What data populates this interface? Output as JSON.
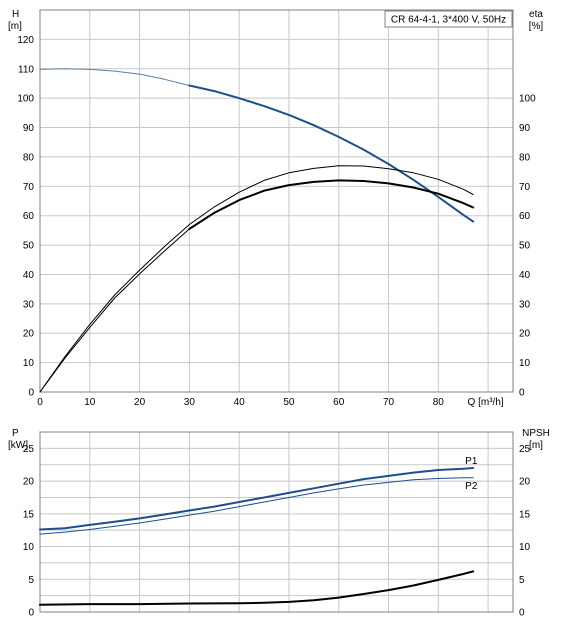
{
  "chart_data": [
    {
      "type": "line",
      "title": "CR 64-4-1, 3*400 V, 50Hz",
      "left_axis": {
        "label_line1": "H",
        "label_line2": "[m]",
        "ylim": [
          0,
          130
        ],
        "ticks": [
          0,
          10,
          20,
          30,
          40,
          50,
          60,
          70,
          80,
          90,
          100,
          110,
          120
        ]
      },
      "right_axis": {
        "label_line1": "eta",
        "label_line2": "[%]",
        "ylim": [
          0,
          130
        ],
        "ticks": [
          0,
          10,
          20,
          30,
          40,
          50,
          60,
          70,
          80,
          90,
          100
        ]
      },
      "x_axis": {
        "label": "Q [m³/h]",
        "xlim": [
          0,
          95
        ],
        "ticks": [
          0,
          10,
          20,
          30,
          40,
          50,
          60,
          70,
          80
        ]
      },
      "grid": true,
      "series": [
        {
          "color": "#5b7fa6",
          "width": 1,
          "points": [
            [
              0,
              109.8
            ],
            [
              5,
              110
            ],
            [
              10,
              109.8
            ],
            [
              15,
              109.2
            ],
            [
              20,
              108.2
            ],
            [
              25,
              106.4
            ],
            [
              30,
              104.3
            ]
          ]
        },
        {
          "color": "#1f4e8c",
          "width": 2,
          "points": [
            [
              30,
              104.3
            ],
            [
              35,
              102.4
            ],
            [
              40,
              100
            ],
            [
              45,
              97.3
            ],
            [
              50,
              94.3
            ],
            [
              55,
              90.8
            ],
            [
              60,
              86.8
            ],
            [
              65,
              82.5
            ],
            [
              70,
              77.6
            ],
            [
              75,
              72.2
            ],
            [
              80,
              66.4
            ],
            [
              85,
              60.3
            ],
            [
              87,
              58
            ]
          ]
        },
        {
          "color": "#000000",
          "width": 1,
          "points": [
            [
              0,
              0
            ],
            [
              5,
              12
            ],
            [
              10,
              23
            ],
            [
              15,
              33
            ],
            [
              20,
              41.5
            ],
            [
              25,
              49.5
            ],
            [
              30,
              57
            ],
            [
              35,
              63
            ],
            [
              40,
              68
            ],
            [
              45,
              72
            ],
            [
              50,
              74.6
            ],
            [
              55,
              76.1
            ],
            [
              60,
              77
            ],
            [
              65,
              76.9
            ],
            [
              70,
              76
            ],
            [
              75,
              74.6
            ],
            [
              80,
              72.4
            ],
            [
              85,
              69
            ],
            [
              87,
              67.2
            ]
          ]
        },
        {
          "color": "#000000",
          "width": 1,
          "points": [
            [
              0,
              0
            ],
            [
              5,
              11.5
            ],
            [
              10,
              22
            ],
            [
              15,
              32
            ],
            [
              20,
              40.2
            ],
            [
              25,
              48
            ],
            [
              30,
              55.5
            ]
          ]
        },
        {
          "color": "#000000",
          "width": 2,
          "points": [
            [
              30,
              55.5
            ],
            [
              35,
              61
            ],
            [
              40,
              65.3
            ],
            [
              45,
              68.5
            ],
            [
              50,
              70.4
            ],
            [
              55,
              71.5
            ],
            [
              60,
              72
            ],
            [
              65,
              71.8
            ],
            [
              70,
              71
            ],
            [
              75,
              69.6
            ],
            [
              80,
              67.5
            ],
            [
              85,
              64.3
            ],
            [
              87,
              62.8
            ]
          ]
        }
      ]
    },
    {
      "type": "line",
      "left_axis": {
        "label_line1": "P",
        "label_line2": "[kW]",
        "ylim": [
          0,
          27.5
        ],
        "ticks": [
          0,
          5,
          10,
          15,
          20,
          25
        ]
      },
      "right_axis": {
        "label_line1": "NPSH",
        "label_line2": "[m]",
        "ylim": [
          0,
          27.5
        ],
        "ticks": [
          0,
          5,
          10,
          15,
          20,
          25
        ]
      },
      "x_axis": {
        "xlim": [
          0,
          95
        ]
      },
      "grid": true,
      "series": [
        {
          "name": "P1",
          "color": "#1f4e8c",
          "width": 2,
          "label_color": "#1f4e8c",
          "points": [
            [
              0,
              12.6
            ],
            [
              5,
              12.8
            ],
            [
              10,
              13.3
            ],
            [
              15,
              13.8
            ],
            [
              20,
              14.3
            ],
            [
              25,
              14.9
            ],
            [
              30,
              15.5
            ],
            [
              35,
              16.1
            ],
            [
              40,
              16.8
            ],
            [
              45,
              17.5
            ],
            [
              50,
              18.2
            ],
            [
              55,
              18.9
            ],
            [
              60,
              19.6
            ],
            [
              65,
              20.3
            ],
            [
              70,
              20.8
            ],
            [
              75,
              21.3
            ],
            [
              80,
              21.7
            ],
            [
              85,
              21.9
            ],
            [
              87,
              22
            ]
          ]
        },
        {
          "name": "P2",
          "color": "#1f4e8c",
          "width": 1,
          "label_color": "#1f4e8c",
          "points": [
            [
              0,
              11.9
            ],
            [
              5,
              12.2
            ],
            [
              10,
              12.6
            ],
            [
              15,
              13.1
            ],
            [
              20,
              13.6
            ],
            [
              25,
              14.2
            ],
            [
              30,
              14.8
            ],
            [
              35,
              15.4
            ],
            [
              40,
              16.1
            ],
            [
              45,
              16.8
            ],
            [
              50,
              17.5
            ],
            [
              55,
              18.2
            ],
            [
              60,
              18.8
            ],
            [
              65,
              19.4
            ],
            [
              70,
              19.8
            ],
            [
              75,
              20.2
            ],
            [
              80,
              20.4
            ],
            [
              85,
              20.5
            ],
            [
              87,
              20.5
            ]
          ]
        },
        {
          "color": "#000000",
          "width": 2,
          "points": [
            [
              0,
              1.1
            ],
            [
              10,
              1.2
            ],
            [
              20,
              1.2
            ],
            [
              30,
              1.3
            ],
            [
              40,
              1.35
            ],
            [
              45,
              1.4
            ],
            [
              50,
              1.55
            ],
            [
              55,
              1.8
            ],
            [
              60,
              2.2
            ],
            [
              65,
              2.75
            ],
            [
              70,
              3.35
            ],
            [
              75,
              4.05
            ],
            [
              80,
              4.9
            ],
            [
              85,
              5.8
            ],
            [
              87,
              6.2
            ]
          ]
        }
      ]
    }
  ]
}
